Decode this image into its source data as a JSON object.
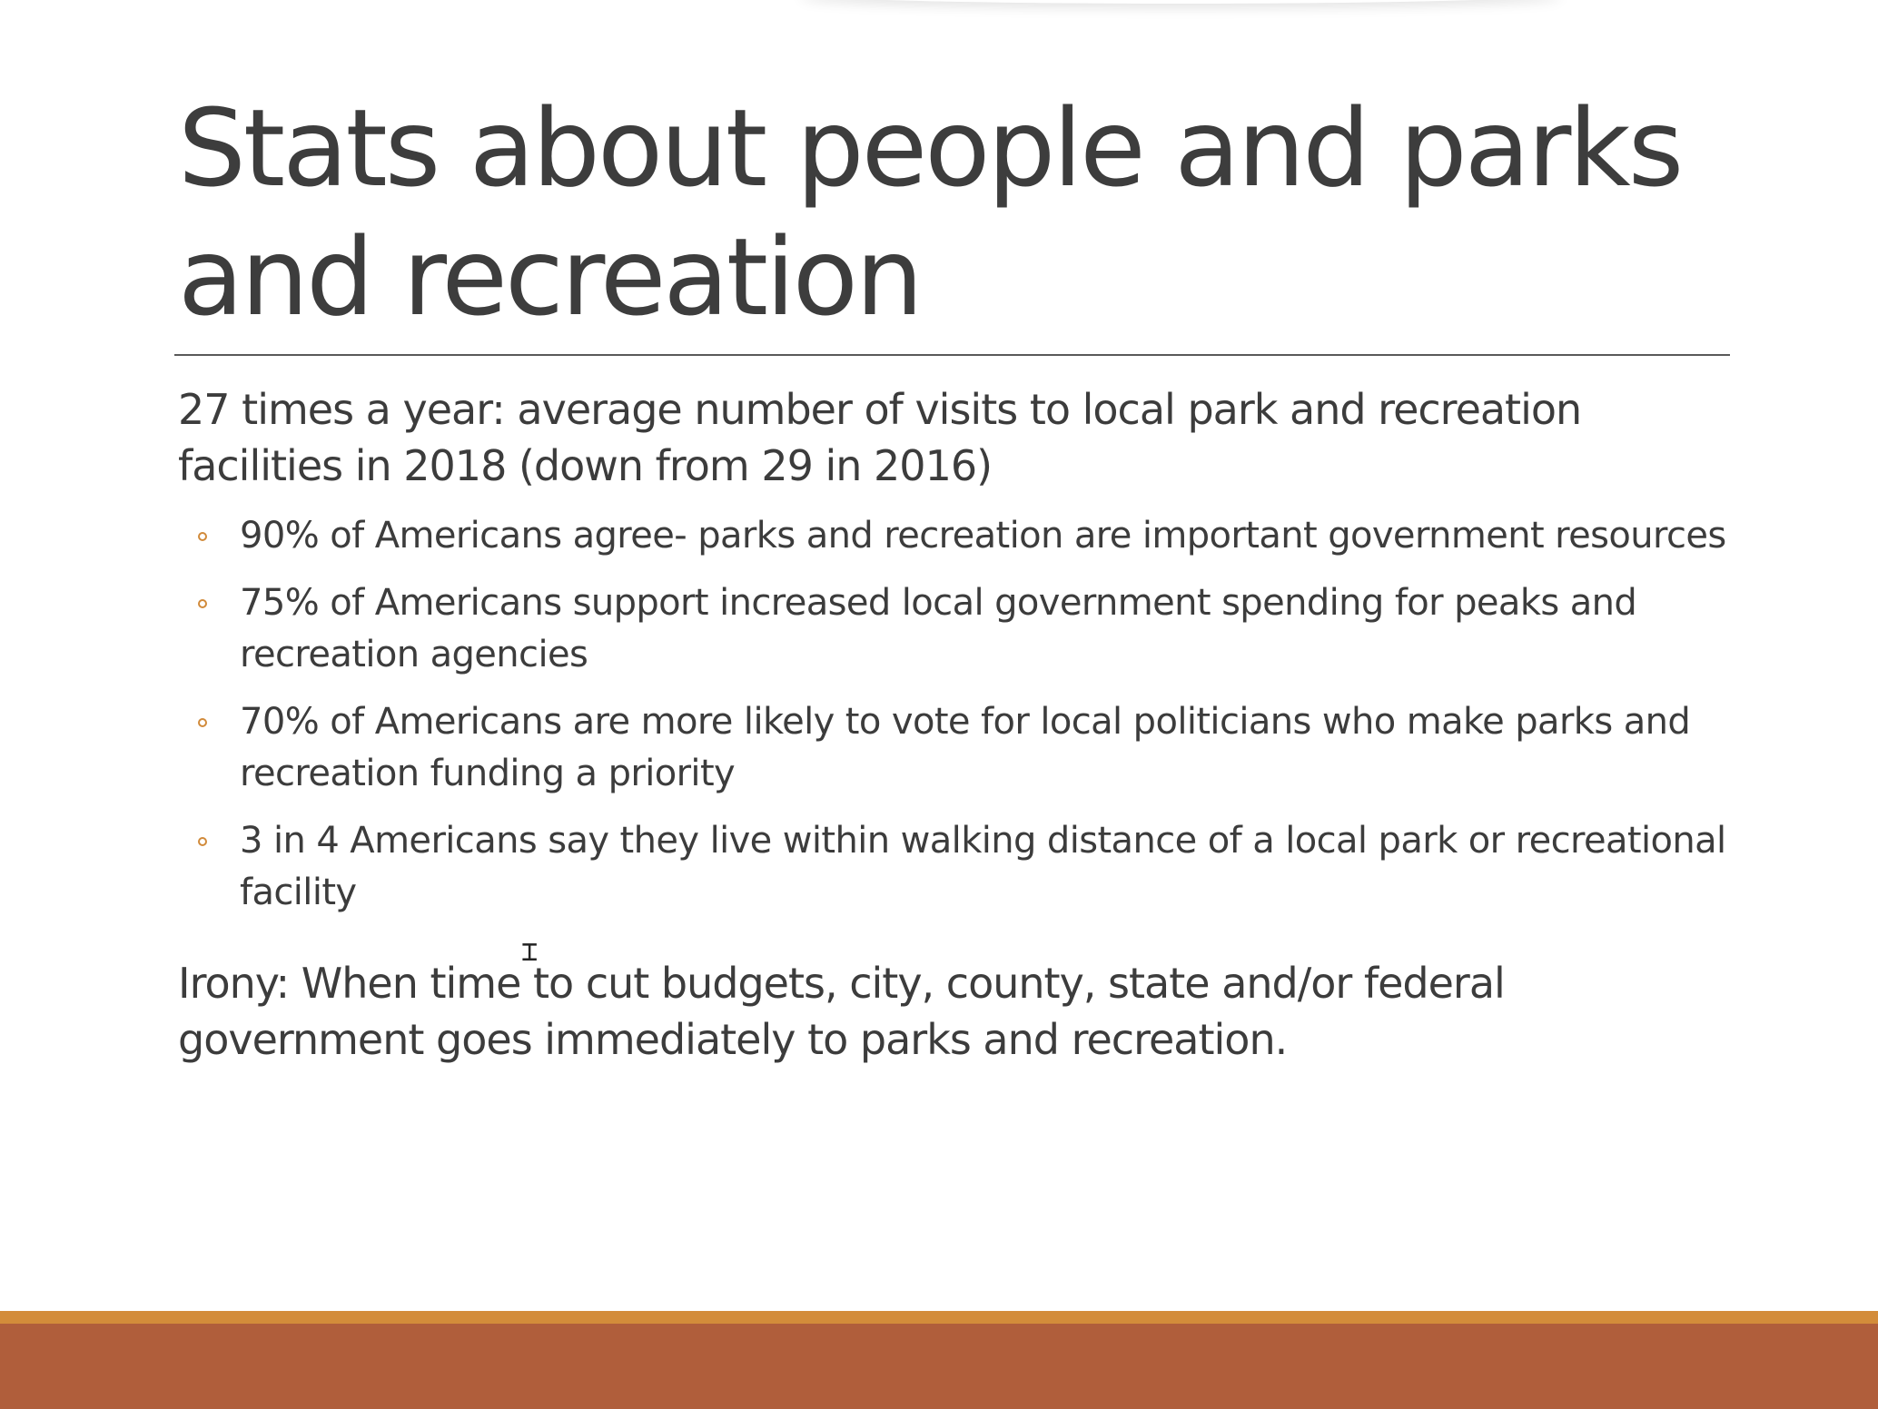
{
  "slide": {
    "title_lines": [
      "Stats about people and parks",
      "and recreation"
    ],
    "intro": "27 times a year: average number of visits to local park and recreation facilities in 2018 (down from 29 in 2016)",
    "bullets": [
      "90% of Americans agree- parks and recreation are important government resources",
      "75% of Americans support increased local government spending for peaks and recreation agencies",
      "70% of Americans are more likely to vote for local politicians who make parks and recreation funding a priority",
      "3 in 4 Americans say they live within walking distance of a local park or recreational facility"
    ],
    "closing": "Irony: When time to cut budgets, city, county, state and/or federal government goes immediately to parks and recreation."
  },
  "colors": {
    "bullet_accent": "#d18a3a",
    "band_accent": "#d38c3a",
    "band_main": "#b05e3b",
    "text": "#3c3c3c"
  },
  "icons": {
    "cursor": "text-cursor-icon"
  }
}
